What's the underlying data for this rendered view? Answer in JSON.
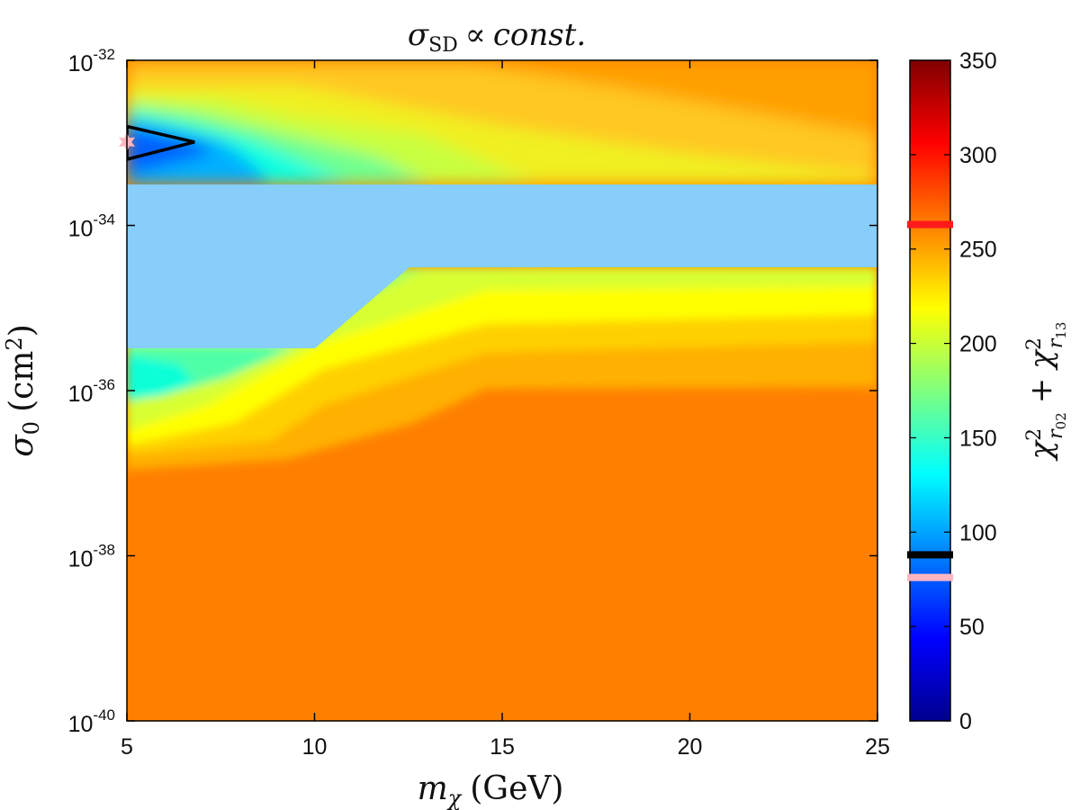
{
  "chart_data": {
    "type": "heatmap",
    "subtype": "filled-contour",
    "title": "σ_SD ∝ const.",
    "title_parts": {
      "symbol": "σ",
      "subscript": "SD",
      "relation": "∝",
      "text": "const."
    },
    "xlabel": "m_χ (GeV)",
    "xlabel_parts": {
      "symbol": "m",
      "subscript": "χ",
      "unit": "(GeV)"
    },
    "ylabel": "σ_0 (cm^2)",
    "ylabel_parts": {
      "symbol": "σ",
      "subscript": "0",
      "unit": "(cm",
      "unit_sup": "2",
      "close": ")"
    },
    "xlim": [
      5,
      25
    ],
    "ylim_log10": [
      -40,
      -32
    ],
    "x_ticks": [
      {
        "value": 5,
        "label": "5"
      },
      {
        "value": 10,
        "label": "10"
      },
      {
        "value": 15,
        "label": "15"
      },
      {
        "value": 20,
        "label": "20"
      },
      {
        "value": 25,
        "label": "25"
      }
    ],
    "y_ticks": [
      {
        "exp": -32,
        "base": "10",
        "sup": "-32"
      },
      {
        "exp": -34,
        "base": "10",
        "sup": "-34"
      },
      {
        "exp": -36,
        "base": "10",
        "sup": "-36"
      },
      {
        "exp": -38,
        "base": "10",
        "sup": "-38"
      },
      {
        "exp": -40,
        "base": "10",
        "sup": "-40"
      }
    ],
    "colorbar": {
      "range": [
        0,
        350
      ],
      "ticks": [
        "0",
        "50",
        "100",
        "150",
        "200",
        "250",
        "300",
        "350"
      ],
      "tick_values": [
        0,
        50,
        100,
        150,
        200,
        250,
        300,
        350
      ],
      "label": "χ²_r02 + χ²_r13",
      "label_parts": {
        "chi": "χ",
        "sup": "2",
        "sub1": "r",
        "sub1b": "02",
        "plus": "+",
        "sub2": "r",
        "sub2b": "13"
      },
      "colormap": "jet",
      "markers": [
        {
          "value": 263,
          "color": "#ff1a1a"
        },
        {
          "value": 88,
          "color": "#000000"
        },
        {
          "value": 76,
          "color": "#ffb6c1"
        }
      ]
    },
    "excluded_band": {
      "log10_sigma_range": [
        -35.5,
        -33.5
      ],
      "m_transition": [
        10,
        12.5
      ],
      "upper_edge_right": -34.5,
      "color": "#87cefa"
    },
    "best_fit": {
      "m": 5,
      "log10_sigma": -32.99,
      "marker": "star",
      "color": "#ffb6c1"
    },
    "contour_line": {
      "color": "#000000",
      "vertices": [
        [
          5,
          -32.8
        ],
        [
          6.8,
          -32.99
        ],
        [
          5,
          -33.2
        ]
      ]
    },
    "regions": [
      {
        "name": "plateau",
        "value": 255,
        "color": "#ff8000"
      },
      {
        "name": "upper-left-minimum",
        "value": 65,
        "color": "#0050ff"
      },
      {
        "name": "lower-left-minimum",
        "value": 140,
        "color": "#00ffcc"
      }
    ]
  }
}
